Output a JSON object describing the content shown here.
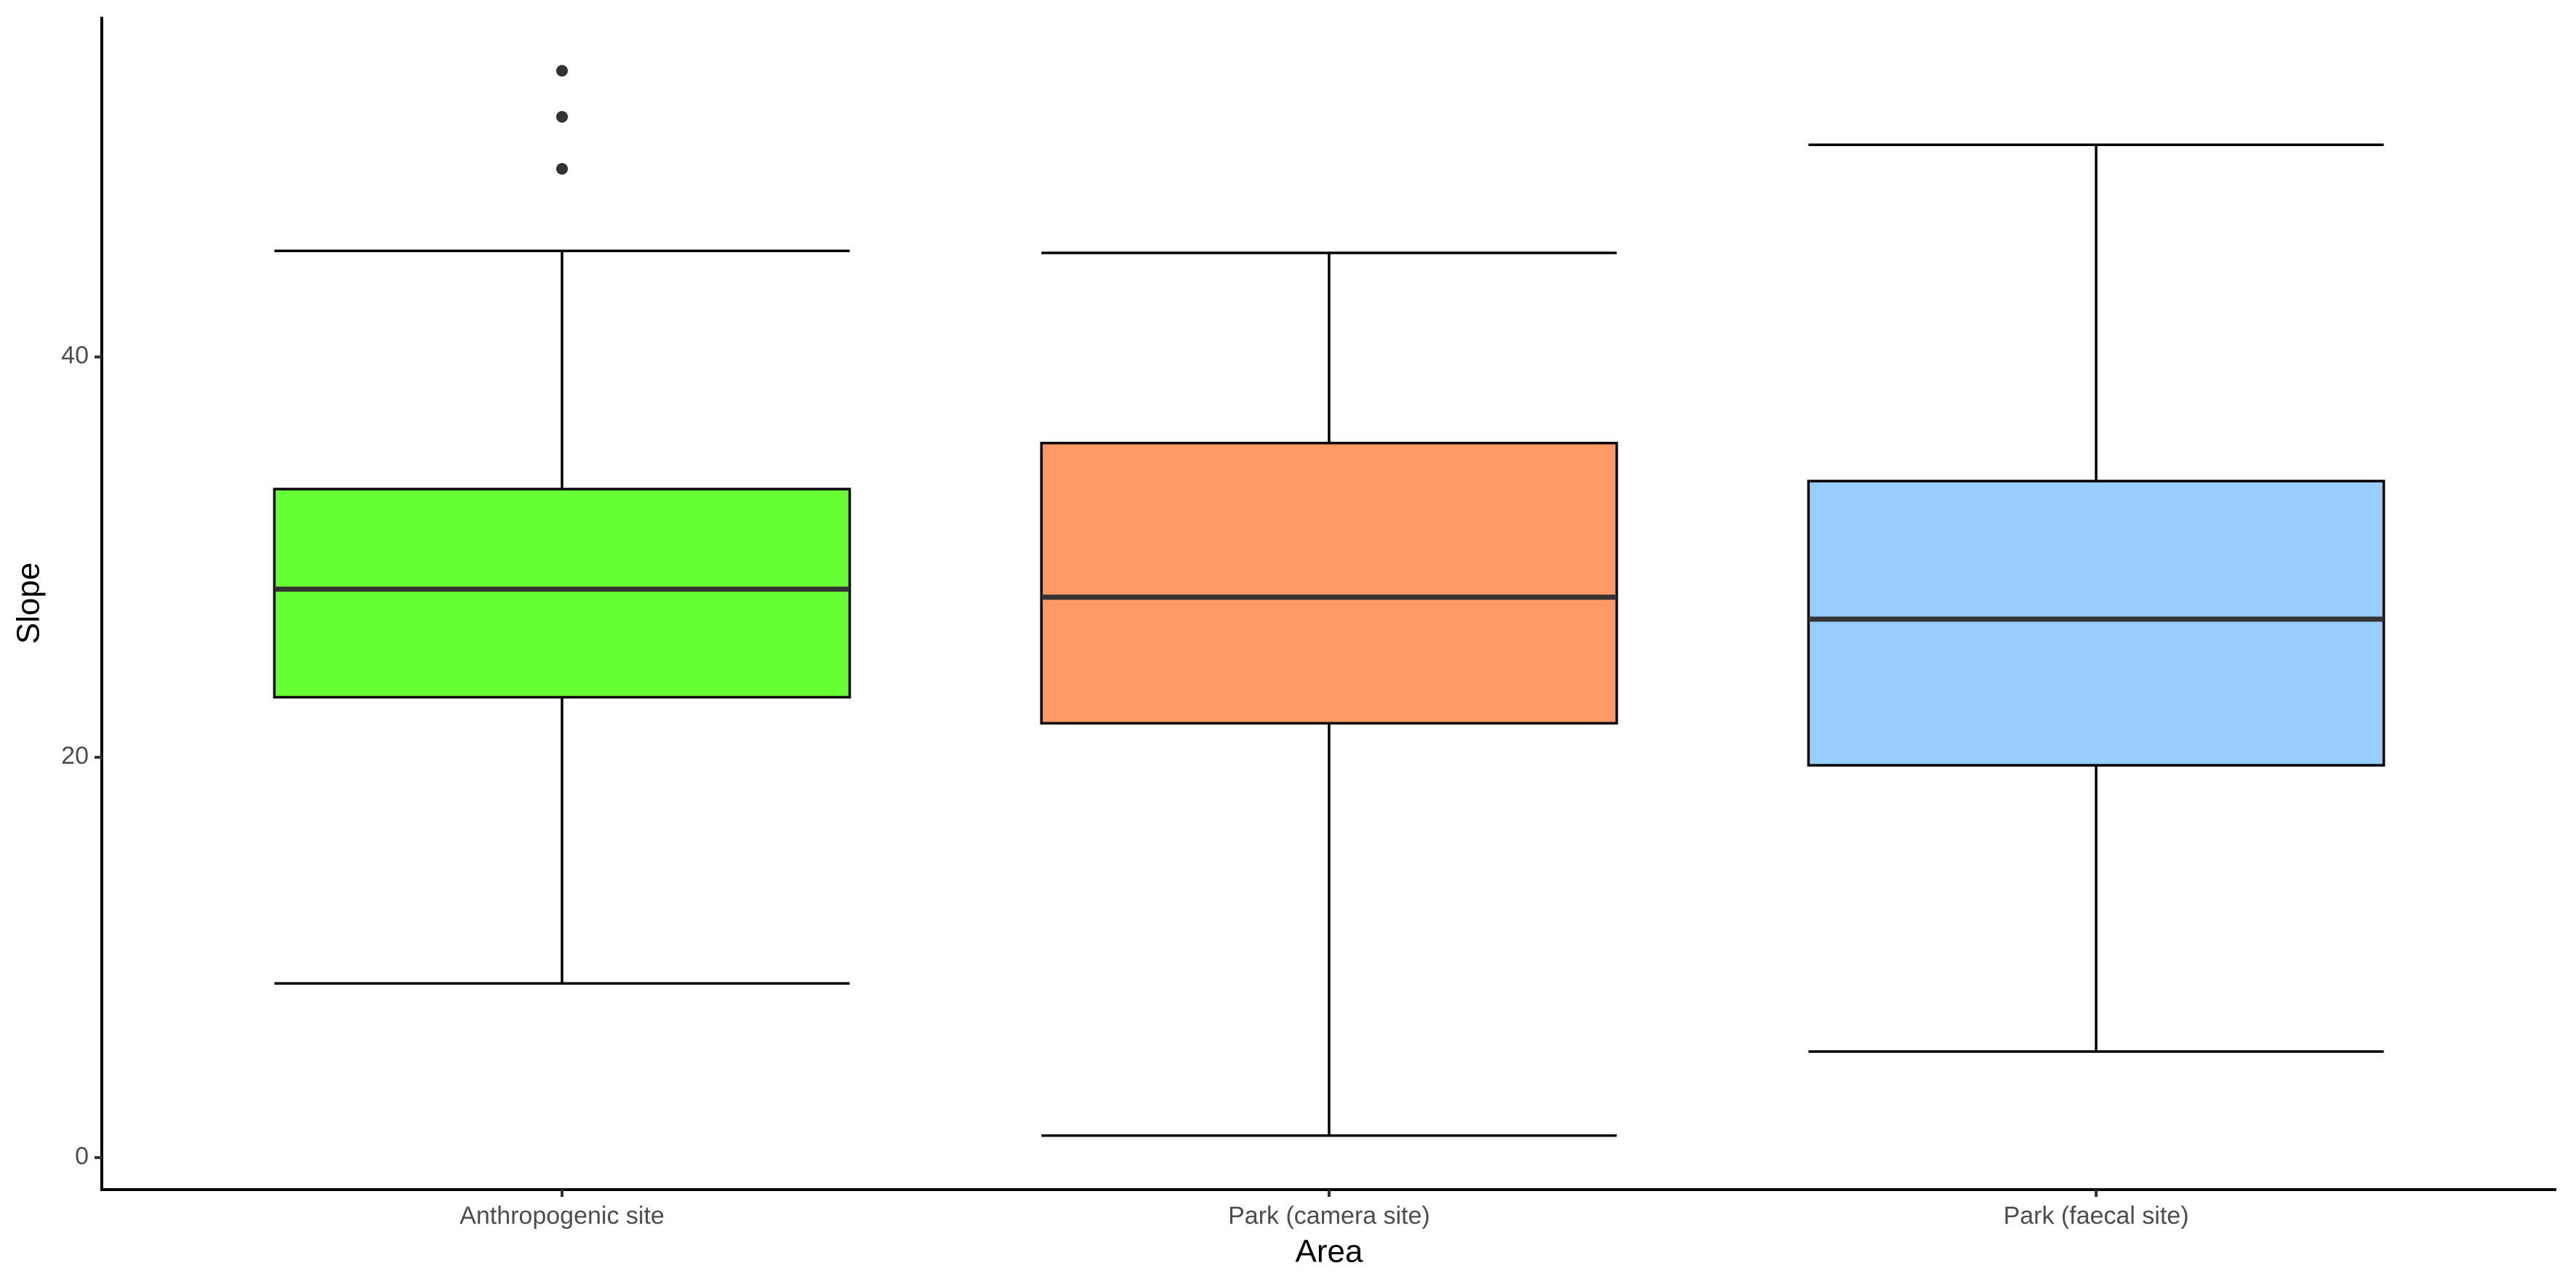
{
  "chart_data": {
    "type": "box",
    "x_label": "Area",
    "y_label": "Slope",
    "categories": [
      "Anthropogenic site",
      "Park (camera site)",
      "Park (faecal site)"
    ],
    "colors": [
      "#66ff33",
      "#ff9966",
      "#99ccff"
    ],
    "boxes": [
      {
        "whisker_low": 8.7,
        "q1": 23.0,
        "median": 28.4,
        "q3": 33.4,
        "whisker_high": 45.3,
        "outliers": [
          49.4,
          52.0,
          54.3
        ]
      },
      {
        "whisker_low": 1.1,
        "q1": 21.7,
        "median": 28.0,
        "q3": 35.7,
        "whisker_high": 45.2,
        "outliers": []
      },
      {
        "whisker_low": 5.3,
        "q1": 19.6,
        "median": 26.9,
        "q3": 33.8,
        "whisker_high": 50.6,
        "outliers": []
      }
    ],
    "ylim": [
      -1.6,
      57
    ],
    "yticks": [
      0,
      20,
      40
    ]
  }
}
